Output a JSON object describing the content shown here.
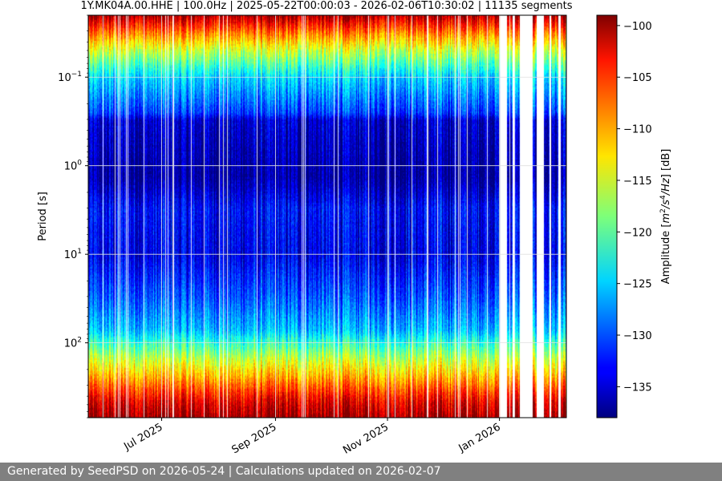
{
  "chart_data": {
    "type": "heatmap",
    "title": "1Y.MK04A.00.HHE | 100.0Hz | 2025-05-22T00:00:03 - 2026-02-06T10:30:02 | 11135 segments",
    "ylabel": "Period [s]",
    "colorbar_label": "Amplitude [m²/s⁴/Hz] [dB]",
    "colorbar_label_parts": {
      "prefix": "Amplitude [",
      "m": "m",
      "sq": "2",
      "slash1": "/s",
      "four": "4",
      "slash2": "/",
      "hz": "Hz",
      "suffix": "] [dB]"
    },
    "x_range": [
      "2025-05-22",
      "2026-02-06"
    ],
    "x_ticks": [
      {
        "date": "2025-07-01",
        "label": "Jul 2025"
      },
      {
        "date": "2025-09-01",
        "label": "Sep 2025"
      },
      {
        "date": "2025-11-01",
        "label": "Nov 2025"
      },
      {
        "date": "2026-01-01",
        "label": "Jan 2026"
      }
    ],
    "y_scale": "log",
    "y_inverted": true,
    "y_range": [
      0.02,
      700
    ],
    "y_ticks": [
      {
        "value": 0.1,
        "base": "10",
        "exp": "−1"
      },
      {
        "value": 1,
        "base": "10",
        "exp": "0"
      },
      {
        "value": 10,
        "base": "10",
        "exp": "1"
      },
      {
        "value": 100,
        "base": "10",
        "exp": "2"
      }
    ],
    "color_range": [
      -138,
      -99
    ],
    "colorbar_ticks": [
      "-100",
      "-105",
      "-110",
      "-115",
      "-120",
      "-125",
      "-130",
      "-135"
    ],
    "colormap": "jet",
    "grid": true,
    "period_profile": [
      {
        "period": 0.02,
        "amplitude_db": -101
      },
      {
        "period": 0.03,
        "amplitude_db": -108
      },
      {
        "period": 0.05,
        "amplitude_db": -116
      },
      {
        "period": 0.1,
        "amplitude_db": -125
      },
      {
        "period": 0.25,
        "amplitude_db": -131
      },
      {
        "period": 0.3,
        "amplitude_db": -135
      },
      {
        "period": 1.3,
        "amplitude_db": -137
      },
      {
        "period": 3,
        "amplitude_db": -133
      },
      {
        "period": 10,
        "amplitude_db": -134
      },
      {
        "period": 30,
        "amplitude_db": -130
      },
      {
        "period": 70,
        "amplitude_db": -126
      },
      {
        "period": 150,
        "amplitude_db": -116
      },
      {
        "period": 250,
        "amplitude_db": -110
      },
      {
        "period": 450,
        "amplitude_db": -103
      },
      {
        "period": 700,
        "amplitude_db": -100
      }
    ],
    "data_gaps": [
      {
        "start": "2026-01-01",
        "end": "2026-01-05"
      },
      {
        "start": "2026-01-08",
        "end": "2026-01-09"
      },
      {
        "start": "2026-01-12",
        "end": "2026-01-19"
      },
      {
        "start": "2026-01-21",
        "end": "2026-01-25"
      },
      {
        "start": "2026-01-28",
        "end": "2026-01-29"
      },
      {
        "start": "2026-02-02",
        "end": "2026-02-03"
      }
    ]
  },
  "footer": {
    "text": "Generated by SeedPSD on 2026-05-24 | Calculations updated on 2026-02-07"
  },
  "colors": {
    "footer_bg": "#808080",
    "grid": "#e0e0e0"
  }
}
